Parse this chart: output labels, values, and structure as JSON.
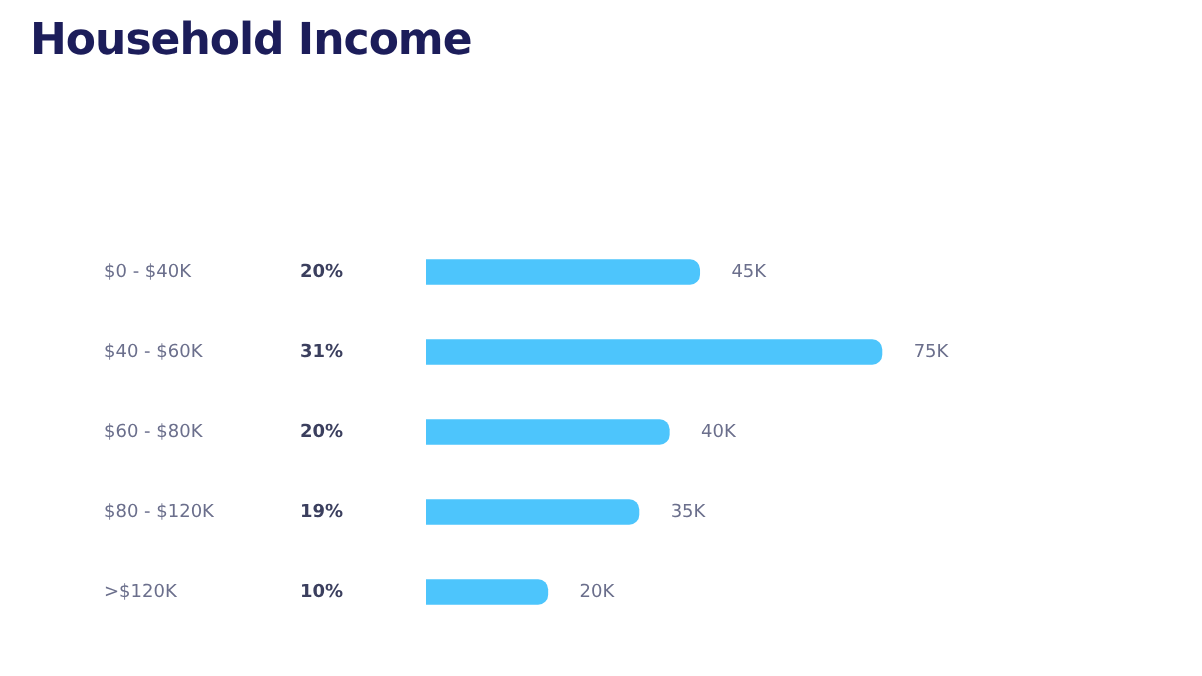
{
  "chart_data": {
    "type": "bar",
    "orientation": "horizontal",
    "title": "Household Income",
    "categories": [
      "$0 - $40K",
      "$40 - $60K",
      "$60 - $80K",
      "$80 - $120K",
      ">$120K"
    ],
    "values": [
      45,
      75,
      40,
      35,
      20
    ],
    "value_labels": [
      "45K",
      "75K",
      "40K",
      "35K",
      "20K"
    ],
    "color": "#4dc5fc",
    "annotations": [
      "20%",
      "31%",
      "20%",
      "19%",
      "10%"
    ],
    "grid": false,
    "legend": false
  }
}
